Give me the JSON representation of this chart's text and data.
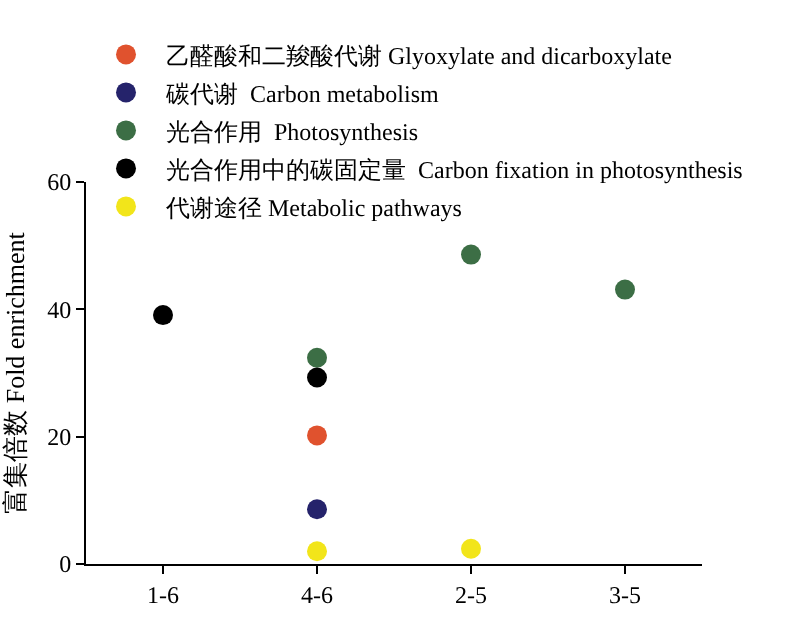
{
  "chart_data": {
    "type": "scatter",
    "categories": [
      "1-6",
      "4-6",
      "2-5",
      "3-5"
    ],
    "ylabel": "富集倍数 Fold enrichment",
    "ylim": [
      0,
      60
    ],
    "yticks": [
      0,
      20,
      40,
      60
    ],
    "legend": "top",
    "marker": "circle",
    "series": [
      {
        "name": "乙醛酸和二羧酸代谢 Glyoxylate and dicarboxylate",
        "color": "#e0522e",
        "values": [
          null,
          20.2,
          null,
          null
        ]
      },
      {
        "name": "碳代谢  Carbon metabolism",
        "color": "#25236b",
        "values": [
          null,
          8.6,
          null,
          null
        ]
      },
      {
        "name": "光合作用  Photosynthesis",
        "color": "#3c6e45",
        "values": [
          null,
          32.4,
          48.6,
          43.1
        ]
      },
      {
        "name": "光合作用中的碳固定量  Carbon fixation in photosynthesis",
        "color": "#000000",
        "values": [
          39.1,
          29.3,
          null,
          null
        ]
      },
      {
        "name": "代谢途径 Metabolic pathways",
        "color": "#f2e51a",
        "values": [
          null,
          2.0,
          2.4,
          null
        ]
      }
    ]
  }
}
